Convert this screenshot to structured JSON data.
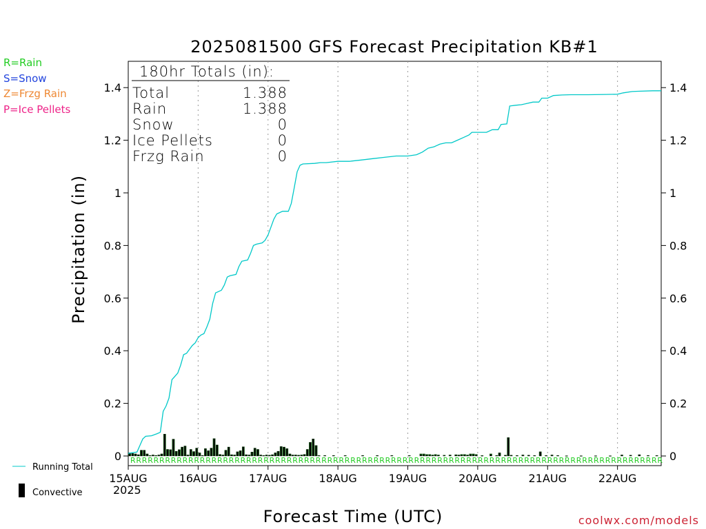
{
  "chart_data": {
    "type": "bar+line",
    "title": "2025081500 GFS Forecast Precipitation KB#1",
    "xlabel": "Forecast Time (UTC)",
    "ylabel": "Precipitation (in)",
    "ylim": [
      0,
      1.5
    ],
    "y_ticks": [
      0,
      0.2,
      0.4,
      0.6,
      0.8,
      1,
      1.2,
      1.4
    ],
    "y_tick_labels": [
      "0",
      "0.2",
      "0.4",
      "0.6",
      "0.8",
      "1",
      "1.2",
      "1.4"
    ],
    "x_range_hours": [
      0,
      183
    ],
    "x_ticks": [
      {
        "hour": 0,
        "label": "15AUG"
      },
      {
        "hour": 24,
        "label": "16AUG"
      },
      {
        "hour": 48,
        "label": "17AUG"
      },
      {
        "hour": 72,
        "label": "18AUG"
      },
      {
        "hour": 96,
        "label": "19AUG"
      },
      {
        "hour": 120,
        "label": "20AUG"
      },
      {
        "hour": 144,
        "label": "21AUG"
      },
      {
        "hour": 168,
        "label": "22AUG"
      }
    ],
    "year_label": "2025",
    "grid": "vertical dotted",
    "ptype_legend": [
      {
        "text": "R=Rain",
        "color": "#22cc22"
      },
      {
        "text": "S=Snow",
        "color": "#2244dd"
      },
      {
        "text": "Z=Frzg Rain",
        "color": "#ee8833"
      },
      {
        "text": "P=Ice Pellets",
        "color": "#ee2288"
      }
    ],
    "series_legend": [
      {
        "text": "Running Total",
        "type": "line",
        "color": "#00c8c8"
      },
      {
        "text": "Convective",
        "type": "bar",
        "color": "#000000"
      }
    ],
    "totals_box": {
      "header": "180hr Totals (in):",
      "rows": [
        {
          "label": "Total",
          "value": "1.388"
        },
        {
          "label": "Rain",
          "value": "1.388"
        },
        {
          "label": "Snow",
          "value": "0"
        },
        {
          "label": "Ice Pellets",
          "value": "0"
        },
        {
          "label": "Frzg Rain",
          "value": "0"
        }
      ]
    },
    "running_total": {
      "name": "Running Total",
      "points": [
        [
          0,
          0.01
        ],
        [
          3,
          0.015
        ],
        [
          4,
          0.04
        ],
        [
          5,
          0.065
        ],
        [
          6,
          0.075
        ],
        [
          8,
          0.077
        ],
        [
          10,
          0.085
        ],
        [
          11,
          0.09
        ],
        [
          12,
          0.17
        ],
        [
          13,
          0.19
        ],
        [
          14,
          0.22
        ],
        [
          15,
          0.29
        ],
        [
          17,
          0.315
        ],
        [
          18,
          0.345
        ],
        [
          19,
          0.385
        ],
        [
          20,
          0.39
        ],
        [
          21,
          0.405
        ],
        [
          22,
          0.42
        ],
        [
          23,
          0.43
        ],
        [
          24,
          0.45
        ],
        [
          25,
          0.46
        ],
        [
          26,
          0.465
        ],
        [
          27,
          0.49
        ],
        [
          28,
          0.52
        ],
        [
          29,
          0.58
        ],
        [
          30,
          0.62
        ],
        [
          31,
          0.625
        ],
        [
          32,
          0.63
        ],
        [
          33,
          0.65
        ],
        [
          34,
          0.68
        ],
        [
          35,
          0.685
        ],
        [
          37,
          0.69
        ],
        [
          38,
          0.72
        ],
        [
          39,
          0.74
        ],
        [
          41,
          0.745
        ],
        [
          42,
          0.77
        ],
        [
          43,
          0.8
        ],
        [
          44,
          0.805
        ],
        [
          46,
          0.81
        ],
        [
          47,
          0.82
        ],
        [
          48,
          0.84
        ],
        [
          49,
          0.87
        ],
        [
          50,
          0.9
        ],
        [
          51,
          0.92
        ],
        [
          52,
          0.925
        ],
        [
          53,
          0.93
        ],
        [
          55,
          0.93
        ],
        [
          56,
          0.96
        ],
        [
          57,
          1.02
        ],
        [
          58,
          1.08
        ],
        [
          59,
          1.105
        ],
        [
          60,
          1.11
        ],
        [
          64,
          1.112
        ],
        [
          66,
          1.115
        ],
        [
          68,
          1.115
        ],
        [
          72,
          1.12
        ],
        [
          76,
          1.12
        ],
        [
          80,
          1.125
        ],
        [
          84,
          1.13
        ],
        [
          88,
          1.135
        ],
        [
          92,
          1.14
        ],
        [
          96,
          1.14
        ],
        [
          99,
          1.145
        ],
        [
          101,
          1.155
        ],
        [
          103,
          1.17
        ],
        [
          105,
          1.175
        ],
        [
          107,
          1.185
        ],
        [
          109,
          1.19
        ],
        [
          111,
          1.19
        ],
        [
          113,
          1.2
        ],
        [
          115,
          1.21
        ],
        [
          117,
          1.22
        ],
        [
          118,
          1.23
        ],
        [
          120,
          1.23
        ],
        [
          123,
          1.23
        ],
        [
          125,
          1.24
        ],
        [
          127,
          1.24
        ],
        [
          128,
          1.26
        ],
        [
          130,
          1.262
        ],
        [
          131,
          1.33
        ],
        [
          133,
          1.333
        ],
        [
          135,
          1.335
        ],
        [
          137,
          1.34
        ],
        [
          139,
          1.345
        ],
        [
          141,
          1.345
        ],
        [
          142,
          1.36
        ],
        [
          144,
          1.36
        ],
        [
          146,
          1.37
        ],
        [
          149,
          1.372
        ],
        [
          152,
          1.373
        ],
        [
          158,
          1.373
        ],
        [
          164,
          1.374
        ],
        [
          168,
          1.375
        ],
        [
          170,
          1.38
        ],
        [
          173,
          1.385
        ],
        [
          175,
          1.386
        ],
        [
          180,
          1.388
        ],
        [
          183,
          1.388
        ]
      ]
    },
    "bars": [
      {
        "hour": 0.5,
        "total": 0.012,
        "conv": 0.012
      },
      {
        "hour": 1.5,
        "total": 0.01,
        "conv": 0.01
      },
      {
        "hour": 2.5,
        "total": 0.008,
        "conv": 0.008
      },
      {
        "hour": 3.5,
        "total": 0.005,
        "conv": 0.005
      },
      {
        "hour": 4.5,
        "total": 0.022,
        "conv": 0.022
      },
      {
        "hour": 5.5,
        "total": 0.022,
        "conv": 0.022
      },
      {
        "hour": 6.5,
        "total": 0.008,
        "conv": 0.008
      },
      {
        "hour": 7.5,
        "total": 0.002,
        "conv": 0.002
      },
      {
        "hour": 8.5,
        "total": 0.004,
        "conv": 0.004
      },
      {
        "hour": 9.5,
        "total": 0.002,
        "conv": 0.002
      },
      {
        "hour": 10.5,
        "total": 0.004,
        "conv": 0.004
      },
      {
        "hour": 11.5,
        "total": 0.008,
        "conv": 0.008
      },
      {
        "hour": 12.5,
        "total": 0.083,
        "conv": 0.083
      },
      {
        "hour": 13.5,
        "total": 0.025,
        "conv": 0.025
      },
      {
        "hour": 14.5,
        "total": 0.024,
        "conv": 0.024
      },
      {
        "hour": 15.5,
        "total": 0.064,
        "conv": 0.064
      },
      {
        "hour": 16.5,
        "total": 0.018,
        "conv": 0.018
      },
      {
        "hour": 17.5,
        "total": 0.024,
        "conv": 0.024
      },
      {
        "hour": 18.5,
        "total": 0.034,
        "conv": 0.034
      },
      {
        "hour": 19.5,
        "total": 0.038,
        "conv": 0.038
      },
      {
        "hour": 20.5,
        "total": 0.004,
        "conv": 0.004
      },
      {
        "hour": 21.5,
        "total": 0.025,
        "conv": 0.025
      },
      {
        "hour": 22.5,
        "total": 0.017,
        "conv": 0.017
      },
      {
        "hour": 23.5,
        "total": 0.03,
        "conv": 0.03
      },
      {
        "hour": 24.5,
        "total": 0.012,
        "conv": 0.012
      },
      {
        "hour": 25.5,
        "total": 0.002,
        "conv": 0.002
      },
      {
        "hour": 26.5,
        "total": 0.028,
        "conv": 0.028
      },
      {
        "hour": 27.5,
        "total": 0.02,
        "conv": 0.02
      },
      {
        "hour": 28.5,
        "total": 0.03,
        "conv": 0.03
      },
      {
        "hour": 29.5,
        "total": 0.066,
        "conv": 0.066
      },
      {
        "hour": 30.5,
        "total": 0.042,
        "conv": 0.042
      },
      {
        "hour": 31.5,
        "total": 0.006,
        "conv": 0.006
      },
      {
        "hour": 32.5,
        "total": 0.004,
        "conv": 0.004
      },
      {
        "hour": 33.5,
        "total": 0.022,
        "conv": 0.022
      },
      {
        "hour": 34.5,
        "total": 0.034,
        "conv": 0.034
      },
      {
        "hour": 35.5,
        "total": 0.005,
        "conv": 0.005
      },
      {
        "hour": 36.5,
        "total": 0.004,
        "conv": 0.004
      },
      {
        "hour": 37.5,
        "total": 0.016,
        "conv": 0.016
      },
      {
        "hour": 38.5,
        "total": 0.02,
        "conv": 0.02
      },
      {
        "hour": 39.5,
        "total": 0.035,
        "conv": 0.035
      },
      {
        "hour": 40.5,
        "total": 0.005,
        "conv": 0.005
      },
      {
        "hour": 41.5,
        "total": 0.004,
        "conv": 0.004
      },
      {
        "hour": 42.5,
        "total": 0.015,
        "conv": 0.015
      },
      {
        "hour": 43.5,
        "total": 0.03,
        "conv": 0.03
      },
      {
        "hour": 44.5,
        "total": 0.025,
        "conv": 0.025
      },
      {
        "hour": 45.5,
        "total": 0.004,
        "conv": 0.004
      },
      {
        "hour": 46.5,
        "total": 0.002,
        "conv": 0.002
      },
      {
        "hour": 47.5,
        "total": 0.004,
        "conv": 0.004
      },
      {
        "hour": 48.5,
        "total": 0.003,
        "conv": 0.003
      },
      {
        "hour": 49.5,
        "total": 0.005,
        "conv": 0.005
      },
      {
        "hour": 50.5,
        "total": 0.012,
        "conv": 0.012
      },
      {
        "hour": 51.5,
        "total": 0.018,
        "conv": 0.018
      },
      {
        "hour": 52.5,
        "total": 0.036,
        "conv": 0.036
      },
      {
        "hour": 53.5,
        "total": 0.034,
        "conv": 0.034
      },
      {
        "hour": 54.5,
        "total": 0.028,
        "conv": 0.028
      },
      {
        "hour": 55.5,
        "total": 0.008,
        "conv": 0.008
      },
      {
        "hour": 56.5,
        "total": 0.004,
        "conv": 0.004
      },
      {
        "hour": 57.5,
        "total": 0.004,
        "conv": 0.004
      },
      {
        "hour": 58.5,
        "total": 0.003,
        "conv": 0.003
      },
      {
        "hour": 59.5,
        "total": 0.004,
        "conv": 0.004
      },
      {
        "hour": 60.5,
        "total": 0.006,
        "conv": 0.006
      },
      {
        "hour": 61.5,
        "total": 0.025,
        "conv": 0.025
      },
      {
        "hour": 62.5,
        "total": 0.052,
        "conv": 0.052
      },
      {
        "hour": 63.5,
        "total": 0.065,
        "conv": 0.065
      },
      {
        "hour": 64.5,
        "total": 0.04,
        "conv": 0.04
      },
      {
        "hour": 65.5,
        "total": 0.002,
        "conv": 0.002
      },
      {
        "hour": 67.5,
        "total": 0.002,
        "conv": 0.002
      },
      {
        "hour": 70.5,
        "total": 0.002,
        "conv": 0.002
      },
      {
        "hour": 74.5,
        "total": 0.002,
        "conv": 0.002
      },
      {
        "hour": 80.5,
        "total": 0.002,
        "conv": 0.002
      },
      {
        "hour": 85.5,
        "total": 0.002,
        "conv": 0.002
      },
      {
        "hour": 90.5,
        "total": 0.002,
        "conv": 0.002
      },
      {
        "hour": 96.5,
        "total": 0.002,
        "conv": 0.002
      },
      {
        "hour": 100.5,
        "total": 0.008,
        "conv": 0.006
      },
      {
        "hour": 101.5,
        "total": 0.008,
        "conv": 0.006
      },
      {
        "hour": 102.5,
        "total": 0.006,
        "conv": 0.004
      },
      {
        "hour": 103.5,
        "total": 0.006,
        "conv": 0.004
      },
      {
        "hour": 104.5,
        "total": 0.004,
        "conv": 0.003
      },
      {
        "hour": 105.5,
        "total": 0.006,
        "conv": 0.004
      },
      {
        "hour": 106.5,
        "total": 0.004,
        "conv": 0.003
      },
      {
        "hour": 108.5,
        "total": 0.003,
        "conv": 0.002
      },
      {
        "hour": 110.5,
        "total": 0.004,
        "conv": 0.003
      },
      {
        "hour": 112.5,
        "total": 0.005,
        "conv": 0.004
      },
      {
        "hour": 113.5,
        "total": 0.004,
        "conv": 0.003
      },
      {
        "hour": 114.5,
        "total": 0.006,
        "conv": 0.004
      },
      {
        "hour": 115.5,
        "total": 0.006,
        "conv": 0.004
      },
      {
        "hour": 116.5,
        "total": 0.004,
        "conv": 0.003
      },
      {
        "hour": 117.5,
        "total": 0.008,
        "conv": 0.006
      },
      {
        "hour": 118.5,
        "total": 0.008,
        "conv": 0.006
      },
      {
        "hour": 119.5,
        "total": 0.006,
        "conv": 0.004
      },
      {
        "hour": 121.5,
        "total": 0.002,
        "conv": 0.001
      },
      {
        "hour": 124.5,
        "total": 0.008,
        "conv": 0.006
      },
      {
        "hour": 126.5,
        "total": 0.002,
        "conv": 0.002
      },
      {
        "hour": 127.5,
        "total": 0.012,
        "conv": 0.012
      },
      {
        "hour": 129.5,
        "total": 0.003,
        "conv": 0.003
      },
      {
        "hour": 130.5,
        "total": 0.07,
        "conv": 0.07
      },
      {
        "hour": 131.5,
        "total": 0.003,
        "conv": 0.003
      },
      {
        "hour": 133.5,
        "total": 0.002,
        "conv": 0.002
      },
      {
        "hour": 135.5,
        "total": 0.004,
        "conv": 0.004
      },
      {
        "hour": 137.5,
        "total": 0.003,
        "conv": 0.003
      },
      {
        "hour": 139.5,
        "total": 0.002,
        "conv": 0.002
      },
      {
        "hour": 141.5,
        "total": 0.016,
        "conv": 0.016
      },
      {
        "hour": 143.5,
        "total": 0.002,
        "conv": 0.002
      },
      {
        "hour": 145.5,
        "total": 0.004,
        "conv": 0.004
      },
      {
        "hour": 147.5,
        "total": 0.002,
        "conv": 0.002
      },
      {
        "hour": 150.5,
        "total": 0.001,
        "conv": 0.001
      },
      {
        "hour": 155.5,
        "total": 0.001,
        "conv": 0.001
      },
      {
        "hour": 160.5,
        "total": 0.001,
        "conv": 0.001
      },
      {
        "hour": 165.5,
        "total": 0.001,
        "conv": 0.001
      },
      {
        "hour": 169.5,
        "total": 0.004,
        "conv": 0.004
      },
      {
        "hour": 172.5,
        "total": 0.003,
        "conv": 0.003
      },
      {
        "hour": 175.5,
        "total": 0.005,
        "conv": 0.005
      },
      {
        "hour": 178.5,
        "total": 0.002,
        "conv": 0.002
      },
      {
        "hour": 181.5,
        "total": 0.002,
        "conv": 0.002
      }
    ],
    "ptype_row": {
      "symbol": "R",
      "color": "#22cc22",
      "hour_start": 0,
      "hour_end": 183
    }
  },
  "footer": {
    "credit": "coolwx.com/models"
  },
  "colors": {
    "running_total": "#00c8c8",
    "bar_fill": "#1a7a1a",
    "bar_convective": "#000000",
    "grid": "#999999"
  }
}
